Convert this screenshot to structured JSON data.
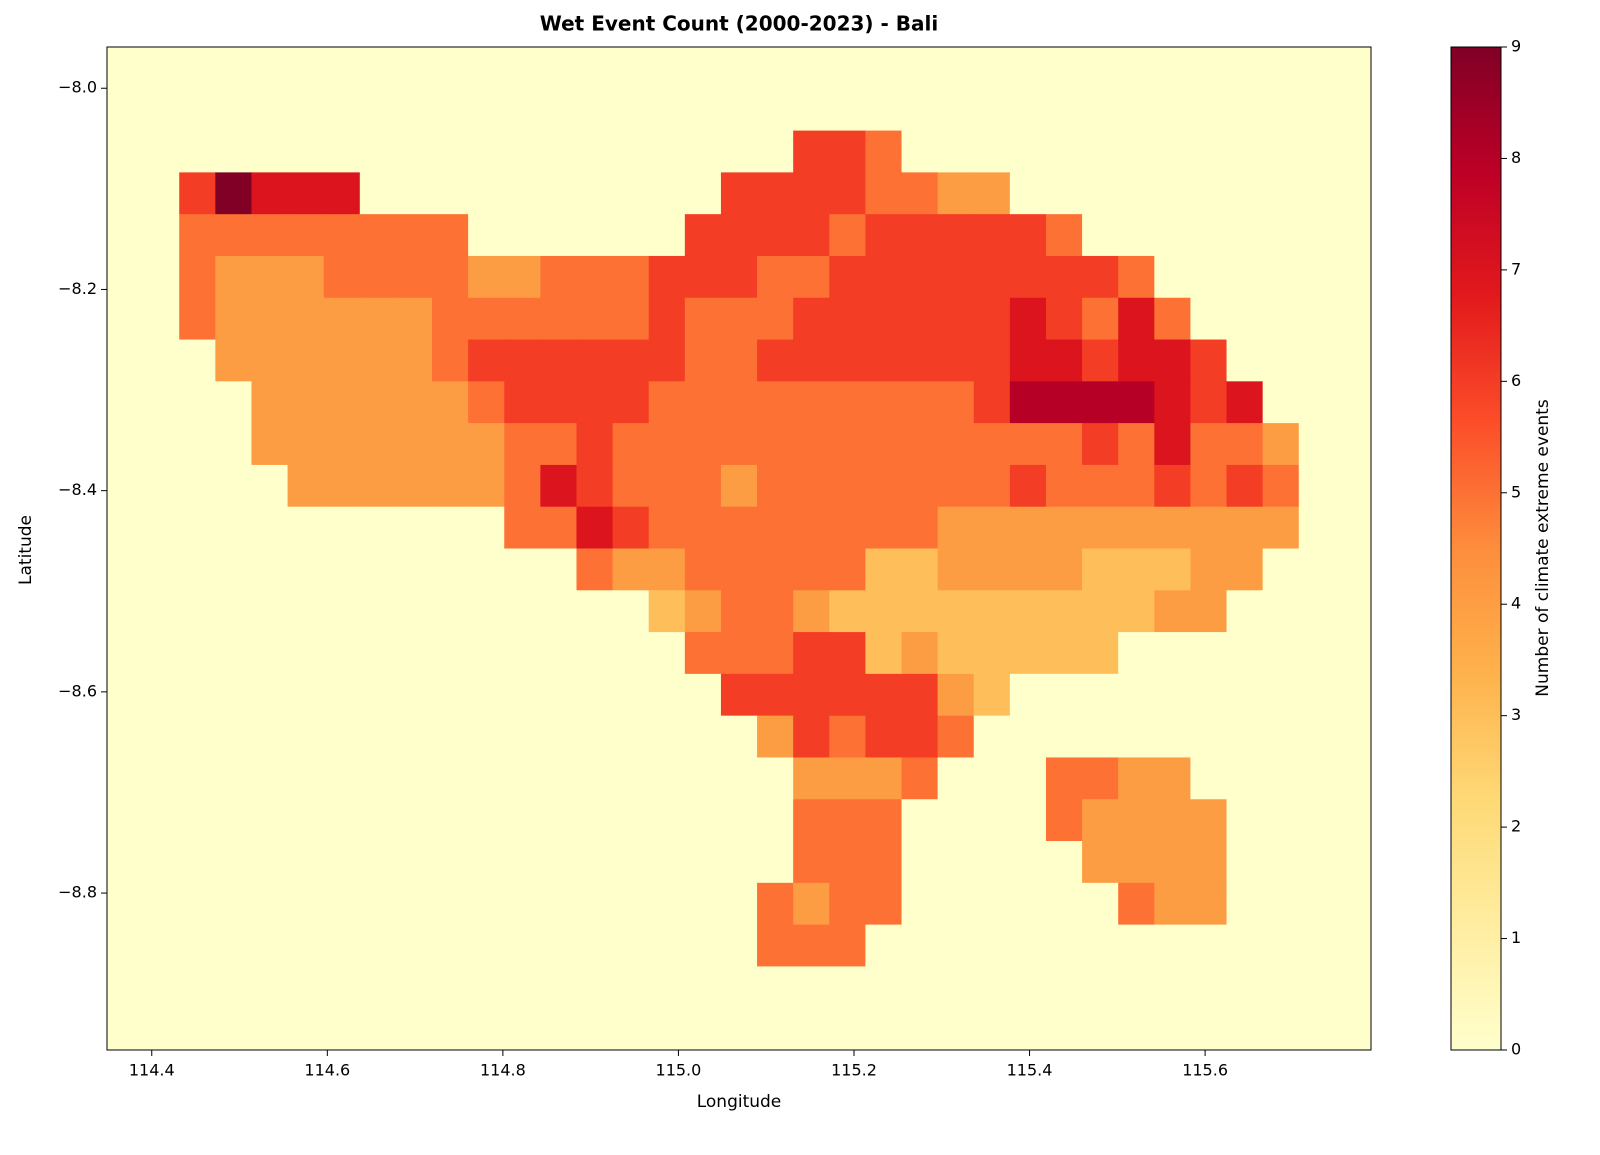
{
  "chart_data": {
    "type": "heatmap",
    "title": "Wet Event Count (2000-2023) - Bali",
    "xlabel": "Longitude",
    "ylabel": "Latitude",
    "colorbar_label": "Number of climate extreme events",
    "xlim": [
      114.349,
      115.789
    ],
    "ylim": [
      -8.956,
      -7.959
    ],
    "xticks": [
      114.4,
      114.6,
      114.8,
      {
        "value": 115,
        "label": "115.0"
      },
      115.2,
      115.4,
      115.6
    ],
    "yticks": [
      {
        "value": -8,
        "label": "−8.0"
      },
      {
        "value": -8.2,
        "label": "−8.2"
      },
      {
        "value": -8.4,
        "label": "−8.4"
      },
      {
        "value": -8.6,
        "label": "−8.6"
      },
      {
        "value": -8.8,
        "label": "−8.8"
      }
    ],
    "clim": [
      0,
      9
    ],
    "cticks": [
      0,
      1,
      2,
      3,
      4,
      5,
      6,
      7,
      8,
      9
    ],
    "colorscale": [
      "#ffffcc",
      "#ffeda0",
      "#fed976",
      "#feb24c",
      "#fd8d3c",
      "#fc4e2a",
      "#e31a1c",
      "#bd0026",
      "#800026"
    ],
    "values": [
      [
        0,
        0,
        0,
        0,
        0,
        0,
        0,
        0,
        0,
        0,
        0,
        0,
        0,
        0,
        0,
        0,
        0,
        0,
        0,
        0,
        0,
        0,
        0,
        0,
        0,
        0,
        0,
        0,
        0,
        0,
        0,
        0,
        0,
        0,
        0
      ],
      [
        0,
        0,
        0,
        0,
        0,
        0,
        0,
        0,
        0,
        0,
        0,
        0,
        0,
        0,
        0,
        0,
        0,
        0,
        0,
        0,
        0,
        0,
        0,
        0,
        0,
        0,
        0,
        0,
        0,
        0,
        0,
        0,
        0,
        0,
        0
      ],
      [
        0,
        0,
        0,
        0,
        0,
        0,
        0,
        0,
        0,
        0,
        0,
        0,
        0,
        0,
        0,
        0,
        0,
        0,
        0,
        6,
        6,
        5,
        0,
        0,
        0,
        0,
        0,
        0,
        0,
        0,
        0,
        0,
        0,
        0,
        0
      ],
      [
        0,
        0,
        6,
        9,
        7,
        7,
        7,
        0,
        0,
        0,
        0,
        0,
        0,
        0,
        0,
        0,
        0,
        6,
        6,
        6,
        6,
        5,
        5,
        4,
        4,
        0,
        0,
        0,
        0,
        0,
        0,
        0,
        0,
        0,
        0
      ],
      [
        0,
        0,
        5,
        5,
        5,
        5,
        5,
        5,
        5,
        5,
        0,
        0,
        0,
        0,
        0,
        0,
        6,
        6,
        6,
        6,
        5,
        6,
        6,
        6,
        6,
        6,
        5,
        0,
        0,
        0,
        0,
        0,
        0,
        0,
        0
      ],
      [
        0,
        0,
        5,
        4,
        4,
        4,
        5,
        5,
        5,
        5,
        4,
        4,
        5,
        5,
        5,
        6,
        6,
        6,
        5,
        5,
        6,
        6,
        6,
        6,
        6,
        6,
        6,
        6,
        5,
        0,
        0,
        0,
        0,
        0,
        0
      ],
      [
        0,
        0,
        5,
        4,
        4,
        4,
        4,
        4,
        4,
        5,
        5,
        5,
        5,
        5,
        5,
        6,
        5,
        5,
        5,
        6,
        6,
        6,
        6,
        6,
        6,
        7,
        6,
        5,
        7,
        5,
        0,
        0,
        0,
        0,
        0
      ],
      [
        0,
        0,
        0,
        4,
        4,
        4,
        4,
        4,
        4,
        5,
        6,
        6,
        6,
        6,
        6,
        6,
        5,
        5,
        6,
        6,
        6,
        6,
        6,
        6,
        6,
        7,
        7,
        6,
        7,
        7,
        6,
        0,
        0,
        0,
        0
      ],
      [
        0,
        0,
        0,
        0,
        4,
        4,
        4,
        4,
        4,
        4,
        5,
        6,
        6,
        6,
        6,
        5,
        5,
        5,
        5,
        5,
        5,
        5,
        5,
        5,
        6,
        8,
        8,
        8,
        8,
        7,
        6,
        7,
        0,
        0,
        0
      ],
      [
        0,
        0,
        0,
        0,
        4,
        4,
        4,
        4,
        4,
        4,
        4,
        5,
        5,
        6,
        5,
        5,
        5,
        5,
        5,
        5,
        5,
        5,
        5,
        5,
        5,
        5,
        5,
        6,
        5,
        7,
        5,
        5,
        4,
        0,
        0
      ],
      [
        0,
        0,
        0,
        0,
        0,
        4,
        4,
        4,
        4,
        4,
        4,
        5,
        7,
        6,
        5,
        5,
        5,
        4,
        5,
        5,
        5,
        5,
        5,
        5,
        5,
        6,
        5,
        5,
        5,
        6,
        5,
        6,
        5,
        0,
        0
      ],
      [
        0,
        0,
        0,
        0,
        0,
        0,
        0,
        0,
        0,
        0,
        0,
        5,
        5,
        7,
        6,
        5,
        5,
        5,
        5,
        5,
        5,
        5,
        5,
        4,
        4,
        4,
        4,
        4,
        4,
        4,
        4,
        4,
        4,
        0,
        0
      ],
      [
        0,
        0,
        0,
        0,
        0,
        0,
        0,
        0,
        0,
        0,
        0,
        0,
        0,
        5,
        4,
        4,
        5,
        5,
        5,
        5,
        5,
        3,
        3,
        4,
        4,
        4,
        4,
        3,
        3,
        3,
        4,
        4,
        0,
        0,
        0
      ],
      [
        0,
        0,
        0,
        0,
        0,
        0,
        0,
        0,
        0,
        0,
        0,
        0,
        0,
        0,
        0,
        3,
        4,
        5,
        5,
        4,
        3,
        3,
        3,
        3,
        3,
        3,
        3,
        3,
        3,
        4,
        4,
        0,
        0,
        0,
        0
      ],
      [
        0,
        0,
        0,
        0,
        0,
        0,
        0,
        0,
        0,
        0,
        0,
        0,
        0,
        0,
        0,
        0,
        5,
        5,
        5,
        6,
        6,
        3,
        4,
        3,
        3,
        3,
        3,
        3,
        0,
        0,
        0,
        0,
        0,
        0,
        0
      ],
      [
        0,
        0,
        0,
        0,
        0,
        0,
        0,
        0,
        0,
        0,
        0,
        0,
        0,
        0,
        0,
        0,
        0,
        6,
        6,
        6,
        6,
        6,
        6,
        4,
        3,
        0,
        0,
        0,
        0,
        0,
        0,
        0,
        0,
        0,
        0
      ],
      [
        0,
        0,
        0,
        0,
        0,
        0,
        0,
        0,
        0,
        0,
        0,
        0,
        0,
        0,
        0,
        0,
        0,
        0,
        4,
        6,
        5,
        6,
        6,
        5,
        0,
        0,
        0,
        0,
        0,
        0,
        0,
        0,
        0,
        0,
        0
      ],
      [
        0,
        0,
        0,
        0,
        0,
        0,
        0,
        0,
        0,
        0,
        0,
        0,
        0,
        0,
        0,
        0,
        0,
        0,
        0,
        4,
        4,
        4,
        5,
        0,
        0,
        0,
        5,
        5,
        4,
        4,
        0,
        0,
        0,
        0,
        0
      ],
      [
        0,
        0,
        0,
        0,
        0,
        0,
        0,
        0,
        0,
        0,
        0,
        0,
        0,
        0,
        0,
        0,
        0,
        0,
        0,
        5,
        5,
        5,
        0,
        0,
        0,
        0,
        5,
        4,
        4,
        4,
        4,
        0,
        0,
        0,
        0
      ],
      [
        0,
        0,
        0,
        0,
        0,
        0,
        0,
        0,
        0,
        0,
        0,
        0,
        0,
        0,
        0,
        0,
        0,
        0,
        0,
        5,
        5,
        5,
        0,
        0,
        0,
        0,
        0,
        4,
        4,
        4,
        4,
        0,
        0,
        0,
        0
      ],
      [
        0,
        0,
        0,
        0,
        0,
        0,
        0,
        0,
        0,
        0,
        0,
        0,
        0,
        0,
        0,
        0,
        0,
        0,
        5,
        4,
        5,
        5,
        0,
        0,
        0,
        0,
        0,
        0,
        5,
        4,
        4,
        0,
        0,
        0,
        0
      ],
      [
        0,
        0,
        0,
        0,
        0,
        0,
        0,
        0,
        0,
        0,
        0,
        0,
        0,
        0,
        0,
        0,
        0,
        0,
        5,
        5,
        5,
        0,
        0,
        0,
        0,
        0,
        0,
        0,
        0,
        0,
        0,
        0,
        0,
        0,
        0
      ],
      [
        0,
        0,
        0,
        0,
        0,
        0,
        0,
        0,
        0,
        0,
        0,
        0,
        0,
        0,
        0,
        0,
        0,
        0,
        0,
        0,
        0,
        0,
        0,
        0,
        0,
        0,
        0,
        0,
        0,
        0,
        0,
        0,
        0,
        0,
        0
      ],
      [
        0,
        0,
        0,
        0,
        0,
        0,
        0,
        0,
        0,
        0,
        0,
        0,
        0,
        0,
        0,
        0,
        0,
        0,
        0,
        0,
        0,
        0,
        0,
        0,
        0,
        0,
        0,
        0,
        0,
        0,
        0,
        0,
        0,
        0,
        0
      ]
    ]
  }
}
